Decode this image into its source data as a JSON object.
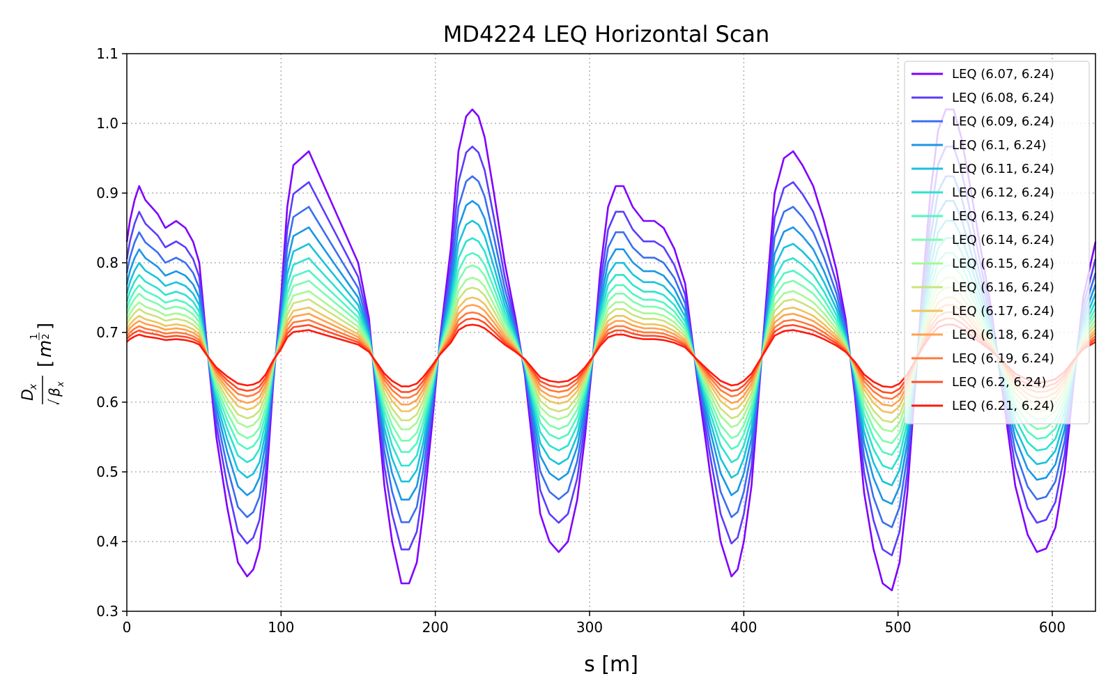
{
  "chart_data": {
    "type": "line",
    "title": "MD4224 LEQ Horizontal Scan",
    "xlabel": "s [m]",
    "ylabel": "Dx/√βx [m^1/2]",
    "xlim": [
      0,
      628
    ],
    "ylim": [
      0.3,
      1.1
    ],
    "xticks": [
      "0",
      "100",
      "200",
      "300",
      "400",
      "500",
      "600"
    ],
    "yticks": [
      "0.3",
      "0.4",
      "0.5",
      "0.6",
      "0.7",
      "0.8",
      "0.9",
      "1.0",
      "1.1"
    ],
    "grid": true,
    "legend_position": "top-right",
    "x": [
      0,
      2,
      5,
      8,
      12,
      20,
      25,
      32,
      38,
      43,
      47,
      52,
      58,
      65,
      72,
      78,
      82,
      86,
      90,
      95,
      100,
      104,
      108,
      113,
      118,
      122,
      130,
      140,
      150,
      157,
      162,
      167,
      172,
      178,
      183,
      188,
      192,
      198,
      203,
      210,
      215,
      220,
      224,
      228,
      232,
      238,
      245,
      252,
      258,
      263,
      268,
      274,
      280,
      286,
      292,
      297,
      302,
      307,
      312,
      317,
      322,
      328,
      335,
      342,
      348,
      355,
      362,
      370,
      378,
      385,
      392,
      396,
      400,
      405,
      410,
      415,
      420,
      426,
      432,
      438,
      445,
      452,
      460,
      466,
      472,
      478,
      484,
      490,
      496,
      501,
      506,
      511,
      516,
      521,
      526,
      531,
      536,
      541,
      546,
      552,
      560,
      568,
      576,
      584,
      590,
      596,
      602,
      608,
      614,
      620,
      626,
      628
    ],
    "series_base": [
      0.83,
      0.86,
      0.89,
      0.91,
      0.89,
      0.87,
      0.85,
      0.86,
      0.85,
      0.83,
      0.8,
      0.68,
      0.55,
      0.45,
      0.37,
      0.35,
      0.36,
      0.39,
      0.47,
      0.63,
      0.75,
      0.88,
      0.94,
      0.95,
      0.96,
      0.94,
      0.9,
      0.85,
      0.8,
      0.72,
      0.6,
      0.48,
      0.4,
      0.34,
      0.34,
      0.37,
      0.44,
      0.57,
      0.69,
      0.82,
      0.96,
      1.01,
      1.02,
      1.01,
      0.98,
      0.9,
      0.8,
      0.72,
      0.64,
      0.54,
      0.44,
      0.4,
      0.385,
      0.4,
      0.46,
      0.55,
      0.66,
      0.79,
      0.88,
      0.91,
      0.91,
      0.88,
      0.86,
      0.86,
      0.85,
      0.82,
      0.77,
      0.63,
      0.5,
      0.4,
      0.35,
      0.36,
      0.4,
      0.48,
      0.62,
      0.76,
      0.9,
      0.95,
      0.96,
      0.94,
      0.91,
      0.86,
      0.79,
      0.72,
      0.61,
      0.47,
      0.39,
      0.34,
      0.33,
      0.37,
      0.47,
      0.62,
      0.77,
      0.9,
      0.99,
      1.02,
      1.02,
      0.98,
      0.92,
      0.84,
      0.74,
      0.61,
      0.48,
      0.41,
      0.385,
      0.39,
      0.42,
      0.5,
      0.63,
      0.75,
      0.81,
      0.83
    ],
    "series": [
      {
        "name": "LEQ (6.07, 6.24)",
        "color": "#8000ff",
        "scale": 1.0
      },
      {
        "name": "LEQ (6.08, 6.24)",
        "color": "#5a3dfb",
        "scale": 0.85
      },
      {
        "name": "LEQ (6.09, 6.24)",
        "color": "#3a6ef0",
        "scale": 0.73
      },
      {
        "name": "LEQ (6.1, 6.24)",
        "color": "#1a96e6",
        "scale": 0.63
      },
      {
        "name": "LEQ (6.11, 6.24)",
        "color": "#18c2dc",
        "scale": 0.55
      },
      {
        "name": "LEQ (6.12, 6.24)",
        "color": "#2ce2cf",
        "scale": 0.48
      },
      {
        "name": "LEQ (6.13, 6.24)",
        "color": "#52f6c0",
        "scale": 0.42
      },
      {
        "name": "LEQ (6.14, 6.24)",
        "color": "#7cfcad",
        "scale": 0.37
      },
      {
        "name": "LEQ (6.15, 6.24)",
        "color": "#a6f896",
        "scale": 0.32
      },
      {
        "name": "LEQ (6.16, 6.24)",
        "color": "#cce27c",
        "scale": 0.28
      },
      {
        "name": "LEQ (6.17, 6.24)",
        "color": "#eec45f",
        "scale": 0.24
      },
      {
        "name": "LEQ (6.18, 6.24)",
        "color": "#ffa14f",
        "scale": 0.21
      },
      {
        "name": "LEQ (6.19, 6.24)",
        "color": "#ff7a3d",
        "scale": 0.18
      },
      {
        "name": "LEQ (6.2, 6.24)",
        "color": "#ff4e27",
        "scale": 0.155
      },
      {
        "name": "LEQ (6.21, 6.24)",
        "color": "#ff1a0d",
        "scale": 0.13
      }
    ],
    "center": 0.665
  }
}
